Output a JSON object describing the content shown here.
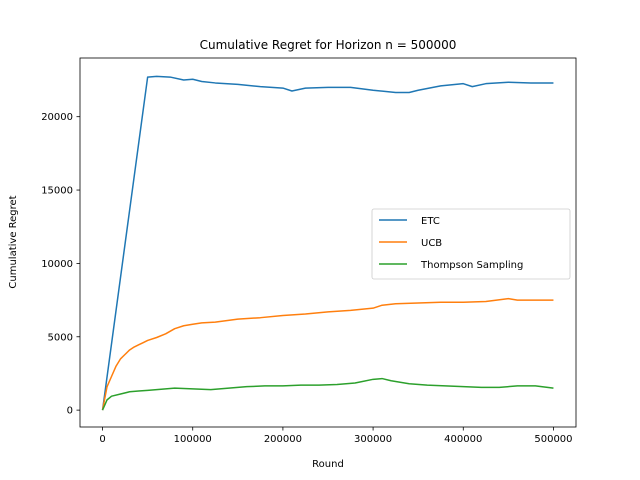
{
  "chart_data": {
    "type": "line",
    "title": "Cumulative Regret for Horizon n = 500000",
    "xlabel": "Round",
    "ylabel": "Cumulative Regret",
    "xlim": [
      -25000,
      525000
    ],
    "ylim": [
      -1150,
      24000
    ],
    "xticks": [
      0,
      100000,
      200000,
      300000,
      400000,
      500000
    ],
    "xtick_labels": [
      "0",
      "100000",
      "200000",
      "300000",
      "400000",
      "500000"
    ],
    "yticks": [
      0,
      5000,
      10000,
      15000,
      20000
    ],
    "ytick_labels": [
      "0",
      "5000",
      "10000",
      "15000",
      "20000"
    ],
    "grid": false,
    "legend_position": "center-right",
    "series": [
      {
        "name": "ETC",
        "color": "#1f77b4",
        "x": [
          0,
          50000,
          60000,
          75000,
          90000,
          100000,
          110000,
          125000,
          150000,
          175000,
          200000,
          210000,
          225000,
          250000,
          275000,
          300000,
          325000,
          340000,
          350000,
          375000,
          400000,
          410000,
          425000,
          450000,
          475000,
          500000
        ],
        "y": [
          0,
          22700,
          22750,
          22700,
          22500,
          22550,
          22400,
          22300,
          22200,
          22050,
          21950,
          21750,
          21950,
          22000,
          22000,
          21800,
          21650,
          21650,
          21800,
          22100,
          22250,
          22050,
          22250,
          22350,
          22300,
          22300
        ]
      },
      {
        "name": "UCB",
        "color": "#ff7f0e",
        "x": [
          0,
          5000,
          10000,
          15000,
          20000,
          25000,
          30000,
          35000,
          40000,
          45000,
          50000,
          60000,
          70000,
          80000,
          90000,
          100000,
          110000,
          125000,
          150000,
          175000,
          200000,
          225000,
          250000,
          275000,
          300000,
          310000,
          325000,
          350000,
          375000,
          400000,
          425000,
          450000,
          460000,
          475000,
          500000
        ],
        "y": [
          0,
          1600,
          2300,
          3000,
          3500,
          3800,
          4100,
          4300,
          4450,
          4600,
          4750,
          4950,
          5200,
          5550,
          5750,
          5850,
          5950,
          6000,
          6200,
          6300,
          6450,
          6550,
          6700,
          6800,
          6950,
          7150,
          7250,
          7300,
          7350,
          7350,
          7400,
          7600,
          7500,
          7500,
          7500
        ]
      },
      {
        "name": "Thompson Sampling",
        "color": "#2ca02c",
        "x": [
          0,
          5000,
          10000,
          20000,
          30000,
          40000,
          50000,
          60000,
          80000,
          100000,
          120000,
          140000,
          160000,
          180000,
          200000,
          220000,
          240000,
          260000,
          280000,
          300000,
          310000,
          320000,
          340000,
          360000,
          380000,
          400000,
          420000,
          440000,
          460000,
          480000,
          500000
        ],
        "y": [
          0,
          700,
          950,
          1100,
          1250,
          1300,
          1350,
          1400,
          1500,
          1450,
          1400,
          1500,
          1600,
          1650,
          1650,
          1700,
          1700,
          1750,
          1850,
          2100,
          2150,
          2000,
          1800,
          1700,
          1650,
          1600,
          1550,
          1550,
          1650,
          1650,
          1500
        ]
      }
    ]
  }
}
